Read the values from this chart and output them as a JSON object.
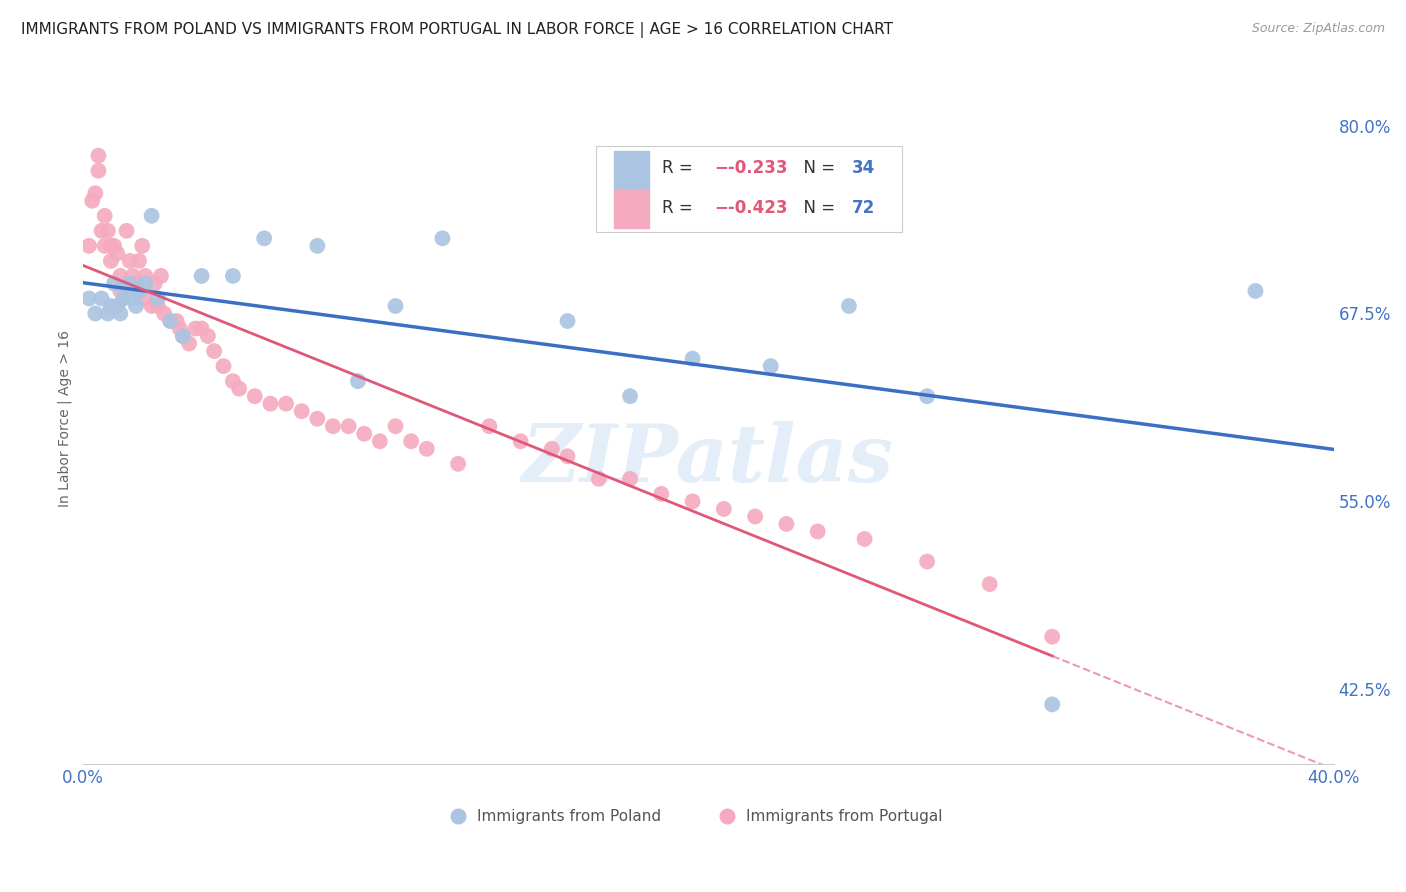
{
  "title": "IMMIGRANTS FROM POLAND VS IMMIGRANTS FROM PORTUGAL IN LABOR FORCE | AGE > 16 CORRELATION CHART",
  "source": "Source: ZipAtlas.com",
  "ylabel": "In Labor Force | Age > 16",
  "xlim": [
    0.0,
    0.4
  ],
  "ylim": [
    0.375,
    0.835
  ],
  "yticks_right": [
    0.8,
    0.675,
    0.55,
    0.425
  ],
  "ytick_right_labels": [
    "80.0%",
    "67.5%",
    "55.0%",
    "42.5%"
  ],
  "poland_color": "#aac4e2",
  "portugal_color": "#f5aabf",
  "poland_line_color": "#3a6fc4",
  "portugal_line_color": "#e05878",
  "legend_R_poland": "-0.233",
  "legend_N_poland": "34",
  "legend_R_portugal": "-0.423",
  "legend_N_portugal": "72",
  "poland_scatter_x": [
    0.002,
    0.004,
    0.006,
    0.008,
    0.009,
    0.01,
    0.011,
    0.012,
    0.013,
    0.014,
    0.015,
    0.016,
    0.017,
    0.018,
    0.02,
    0.022,
    0.024,
    0.028,
    0.032,
    0.038,
    0.048,
    0.058,
    0.075,
    0.088,
    0.1,
    0.115,
    0.155,
    0.175,
    0.195,
    0.22,
    0.245,
    0.27,
    0.31,
    0.375
  ],
  "poland_scatter_y": [
    0.685,
    0.675,
    0.685,
    0.675,
    0.68,
    0.695,
    0.68,
    0.675,
    0.685,
    0.69,
    0.695,
    0.685,
    0.68,
    0.69,
    0.695,
    0.74,
    0.685,
    0.67,
    0.66,
    0.7,
    0.7,
    0.725,
    0.72,
    0.63,
    0.68,
    0.725,
    0.67,
    0.62,
    0.645,
    0.64,
    0.68,
    0.62,
    0.415,
    0.69
  ],
  "portugal_scatter_x": [
    0.002,
    0.003,
    0.004,
    0.005,
    0.005,
    0.006,
    0.007,
    0.007,
    0.008,
    0.009,
    0.009,
    0.01,
    0.011,
    0.012,
    0.012,
    0.013,
    0.014,
    0.014,
    0.015,
    0.015,
    0.016,
    0.017,
    0.018,
    0.019,
    0.02,
    0.02,
    0.022,
    0.023,
    0.024,
    0.025,
    0.026,
    0.028,
    0.03,
    0.031,
    0.032,
    0.034,
    0.036,
    0.038,
    0.04,
    0.042,
    0.045,
    0.048,
    0.05,
    0.055,
    0.06,
    0.065,
    0.07,
    0.075,
    0.08,
    0.085,
    0.09,
    0.095,
    0.1,
    0.105,
    0.11,
    0.12,
    0.13,
    0.14,
    0.15,
    0.155,
    0.165,
    0.175,
    0.185,
    0.195,
    0.205,
    0.215,
    0.225,
    0.235,
    0.25,
    0.27,
    0.29,
    0.31
  ],
  "portugal_scatter_y": [
    0.72,
    0.75,
    0.755,
    0.77,
    0.78,
    0.73,
    0.74,
    0.72,
    0.73,
    0.72,
    0.71,
    0.72,
    0.715,
    0.7,
    0.69,
    0.685,
    0.695,
    0.73,
    0.695,
    0.71,
    0.7,
    0.695,
    0.71,
    0.72,
    0.7,
    0.685,
    0.68,
    0.695,
    0.68,
    0.7,
    0.675,
    0.67,
    0.67,
    0.665,
    0.66,
    0.655,
    0.665,
    0.665,
    0.66,
    0.65,
    0.64,
    0.63,
    0.625,
    0.62,
    0.615,
    0.615,
    0.61,
    0.605,
    0.6,
    0.6,
    0.595,
    0.59,
    0.6,
    0.59,
    0.585,
    0.575,
    0.6,
    0.59,
    0.585,
    0.58,
    0.565,
    0.565,
    0.555,
    0.55,
    0.545,
    0.54,
    0.535,
    0.53,
    0.525,
    0.51,
    0.495,
    0.46
  ],
  "watermark_text": "ZIPatlas",
  "background_color": "#ffffff",
  "grid_color": "#dddddd",
  "title_fontsize": 11,
  "right_tick_color": "#4472c4",
  "bottom_tick_color": "#4472c4"
}
